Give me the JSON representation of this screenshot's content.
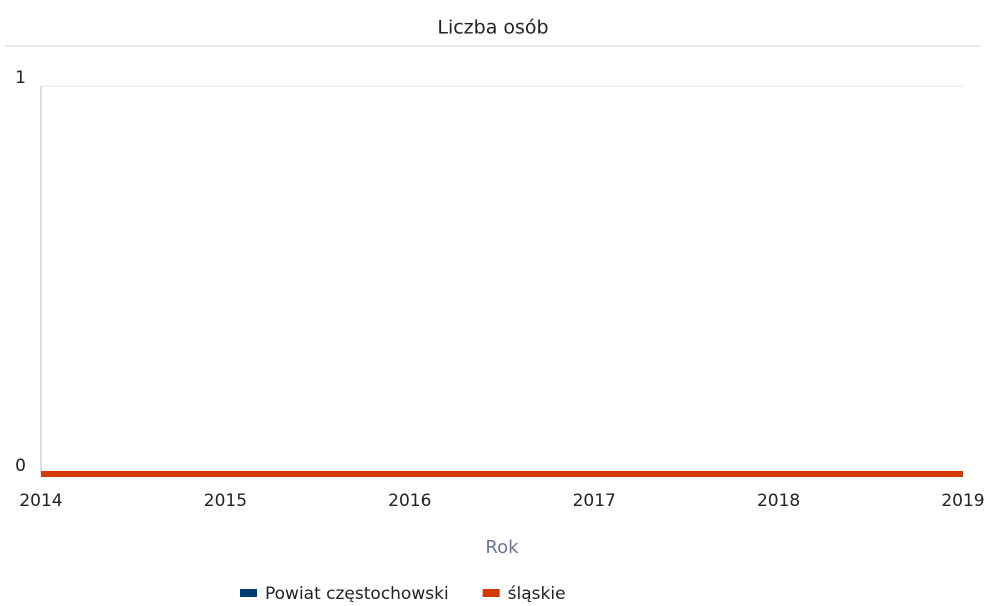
{
  "chart_data": {
    "type": "line",
    "title": "Liczba osób",
    "xlabel": "Rok",
    "x": [
      2014,
      2015,
      2016,
      2017,
      2018,
      2019
    ],
    "series": [
      {
        "name": "Powiat częstochowski",
        "color": "#003a70",
        "values": [
          0,
          0,
          0,
          0,
          0,
          0
        ]
      },
      {
        "name": "śląskie",
        "color": "#d33a00",
        "values": [
          0,
          0,
          0,
          0,
          0,
          0
        ]
      }
    ],
    "xlim": [
      2014,
      2019
    ],
    "xticks": [
      2014,
      2015,
      2016,
      2017,
      2018,
      2019
    ],
    "ylim": [
      0,
      1
    ],
    "yticks": [
      0,
      1
    ],
    "grid": true,
    "legend": "bottom"
  }
}
